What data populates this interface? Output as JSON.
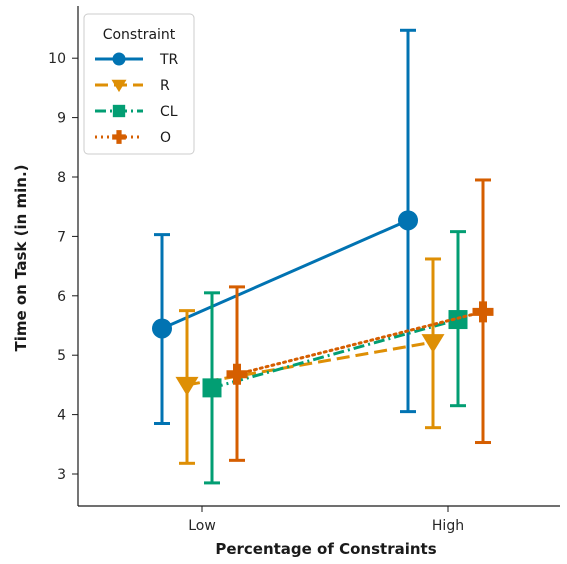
{
  "chart_data": {
    "type": "line",
    "title": "",
    "xlabel": "Percentage of Constraints",
    "ylabel": "Time on Task (in min.)",
    "categories": [
      "Low",
      "High"
    ],
    "ylim": [
      2.6,
      10.8
    ],
    "yticks": [
      "3",
      "4",
      "5",
      "6",
      "7",
      "8",
      "9",
      "10"
    ],
    "grid": false,
    "legend": {
      "title": "Constraint",
      "placement": "top-left"
    },
    "series": [
      {
        "name": "TR",
        "color": "#0173b2",
        "marker": "circle",
        "linestyle": "solid",
        "values": [
          5.45,
          7.27
        ],
        "err_low": [
          3.85,
          4.05
        ],
        "err_high": [
          7.03,
          10.47
        ]
      },
      {
        "name": "R",
        "color": "#de8f05",
        "marker": "triangle-down",
        "linestyle": "dashed",
        "values": [
          4.5,
          5.22
        ],
        "err_low": [
          3.18,
          3.78
        ],
        "err_high": [
          5.75,
          6.62
        ]
      },
      {
        "name": "CL",
        "color": "#029e73",
        "marker": "square",
        "linestyle": "dashdot",
        "values": [
          4.45,
          5.6
        ],
        "err_low": [
          2.85,
          4.15
        ],
        "err_high": [
          6.05,
          7.08
        ]
      },
      {
        "name": "O",
        "color": "#d55e00",
        "marker": "plus",
        "linestyle": "dotted",
        "values": [
          4.68,
          5.73
        ],
        "err_low": [
          3.23,
          3.53
        ],
        "err_high": [
          6.15,
          7.95
        ]
      }
    ]
  }
}
